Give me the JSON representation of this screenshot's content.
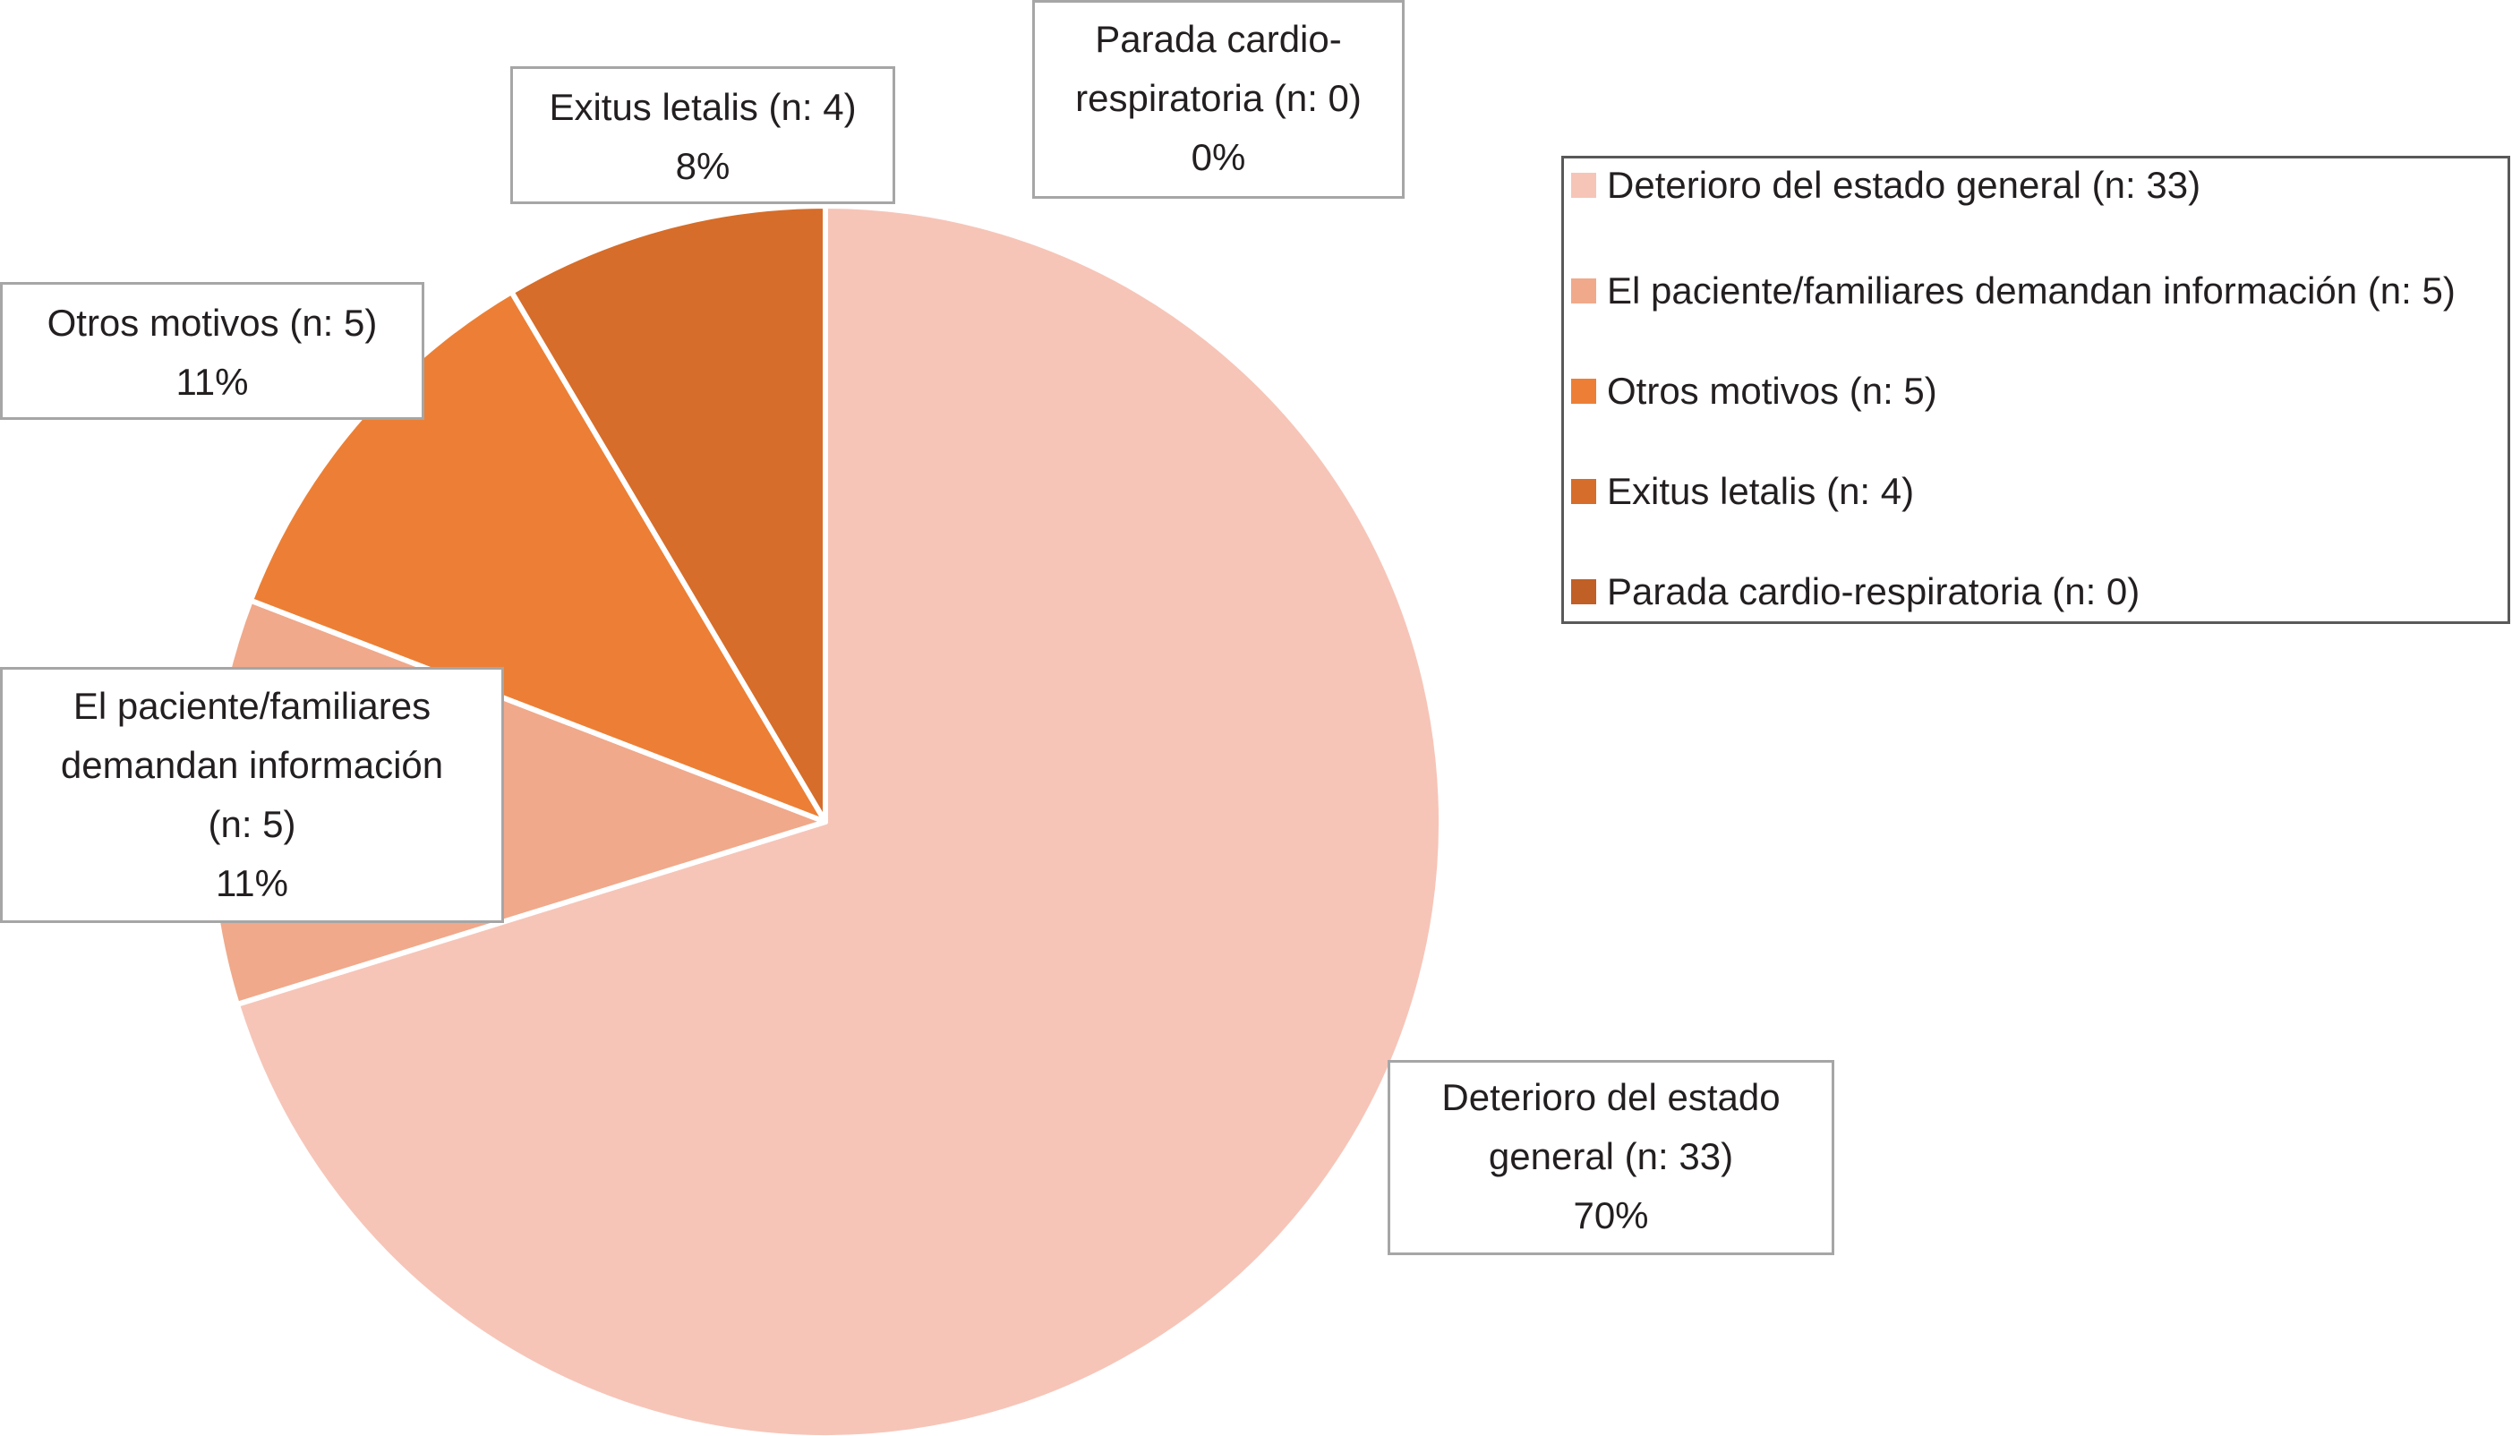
{
  "chart_data": {
    "type": "pie",
    "slices": [
      {
        "category": "Deterioro del estado general",
        "n": 33,
        "percent": 70,
        "color": "#f6c5b8",
        "legend_label": "Deterioro del estado general (n: 33)",
        "callout_lines": [
          "Deterioro del  estado",
          "general (n: 33)",
          "70%"
        ]
      },
      {
        "category": "El paciente/familiares demandan información",
        "n": 5,
        "percent": 11,
        "color": "#f0a98b",
        "legend_label": "El paciente/familiares demandan información (n: 5)",
        "callout_lines": [
          "El paciente/familiares",
          "demandan información",
          "(n: 5)",
          "11%"
        ]
      },
      {
        "category": "Otros motivos",
        "n": 5,
        "percent": 11,
        "color": "#ec7f35",
        "legend_label": "Otros motivos (n: 5)",
        "callout_lines": [
          "Otros motivos (n: 5)",
          "11%"
        ]
      },
      {
        "category": "Exitus letalis",
        "n": 4,
        "percent": 8,
        "color": "#d66d2a",
        "legend_label": "Exitus letalis   (n: 4)",
        "callout_lines": [
          "Exitus letalis (n: 4)",
          "8%"
        ]
      },
      {
        "category": "Parada cardio-respiratoria",
        "n": 0,
        "percent": 0,
        "color": "#c05f26",
        "legend_label": "Parada cardio-respiratoria (n: 0)",
        "callout_lines": [
          "Parada cardio-",
          "respiratoria (n: 0)",
          "0%"
        ]
      }
    ],
    "legend_position": "top-right"
  }
}
